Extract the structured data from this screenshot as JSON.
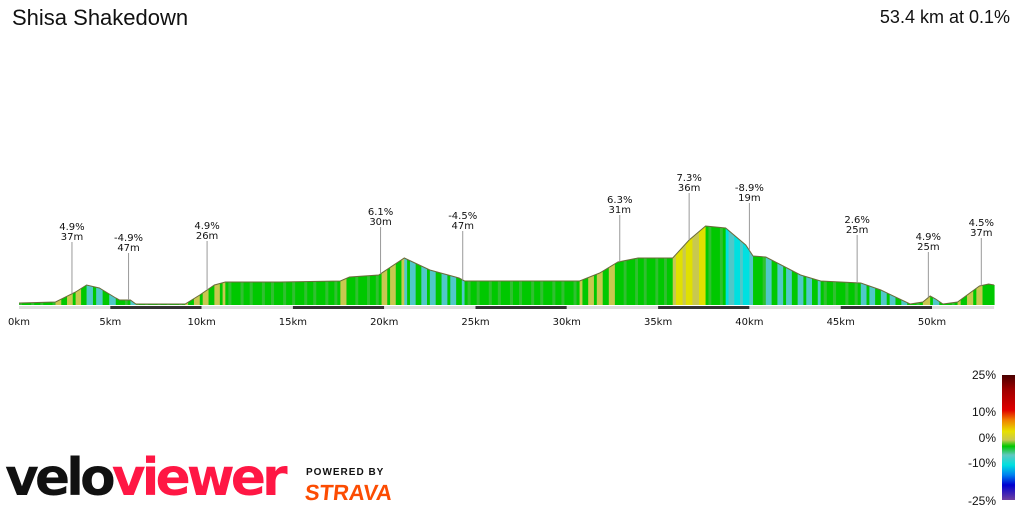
{
  "header": {
    "title": "Shisa Shakedown",
    "summary": "53.4 km at 0.1%"
  },
  "chart_data": {
    "type": "area",
    "title": "Shisa Shakedown",
    "xlabel": "",
    "ylabel": "",
    "xlim": [
      0,
      53.4
    ],
    "x_ticks": [
      "0km",
      "5km",
      "10km",
      "15km",
      "20km",
      "25km",
      "30km",
      "35km",
      "40km",
      "45km",
      "50km"
    ],
    "x_tick_values": [
      0,
      5,
      10,
      15,
      20,
      25,
      30,
      35,
      40,
      45,
      50
    ],
    "grid": false,
    "coloring": "by gradient",
    "profile": [
      [
        0,
        8
      ],
      [
        2.0,
        12
      ],
      [
        3.1,
        52
      ],
      [
        3.7,
        80
      ],
      [
        4.4,
        68
      ],
      [
        5.3,
        28
      ],
      [
        5.5,
        20
      ],
      [
        6.1,
        20
      ],
      [
        6.4,
        4
      ],
      [
        9.1,
        4
      ],
      [
        9.9,
        40
      ],
      [
        10.7,
        80
      ],
      [
        11.3,
        92
      ],
      [
        14.3,
        92
      ],
      [
        17.6,
        96
      ],
      [
        18.1,
        112
      ],
      [
        19.7,
        120
      ],
      [
        21.1,
        188
      ],
      [
        22.5,
        140
      ],
      [
        24.1,
        108
      ],
      [
        24.4,
        96
      ],
      [
        30.7,
        96
      ],
      [
        31.8,
        128
      ],
      [
        32.8,
        172
      ],
      [
        33.9,
        188
      ],
      [
        35.8,
        188
      ],
      [
        36.7,
        260
      ],
      [
        37.6,
        316
      ],
      [
        38.7,
        308
      ],
      [
        39.8,
        240
      ],
      [
        40.2,
        196
      ],
      [
        40.9,
        192
      ],
      [
        42.8,
        120
      ],
      [
        43.9,
        96
      ],
      [
        46.1,
        88
      ],
      [
        47.2,
        60
      ],
      [
        48.8,
        4
      ],
      [
        49.5,
        12
      ],
      [
        49.9,
        36
      ],
      [
        50.2,
        24
      ],
      [
        50.6,
        4
      ],
      [
        51.4,
        12
      ],
      [
        52.6,
        76
      ],
      [
        53.1,
        84
      ],
      [
        53.4,
        80
      ]
    ],
    "annotations": [
      {
        "km": 2.9,
        "grade": "4.9%",
        "gain": "37m"
      },
      {
        "km": 6.0,
        "grade": "-4.9%",
        "gain": "47m"
      },
      {
        "km": 10.3,
        "grade": "4.9%",
        "gain": "26m"
      },
      {
        "km": 19.8,
        "grade": "6.1%",
        "gain": "30m"
      },
      {
        "km": 24.3,
        "grade": "-4.5%",
        "gain": "47m"
      },
      {
        "km": 32.9,
        "grade": "6.3%",
        "gain": "31m"
      },
      {
        "km": 36.7,
        "grade": "7.3%",
        "gain": "36m"
      },
      {
        "km": 40.0,
        "grade": "-8.9%",
        "gain": "19m"
      },
      {
        "km": 45.9,
        "grade": "2.6%",
        "gain": "25m"
      },
      {
        "km": 49.8,
        "grade": "4.9%",
        "gain": "25m"
      },
      {
        "km": 52.7,
        "grade": "4.5%",
        "gain": "37m"
      }
    ],
    "legend": {
      "labels": [
        "25%",
        "10%",
        "0%",
        "-10%",
        "-25%"
      ],
      "position": "bottom-right"
    }
  },
  "colors": {
    "flat": "#00c800",
    "gentle_up": "#c8c850",
    "steep_up": "#e0e000",
    "down": "#50c8c8",
    "steep_down": "#00e0e0"
  },
  "branding": {
    "logo_velo": "velo",
    "logo_viewer": "viewer",
    "powered_by": "POWERED BY",
    "strava": "STRAVA"
  }
}
